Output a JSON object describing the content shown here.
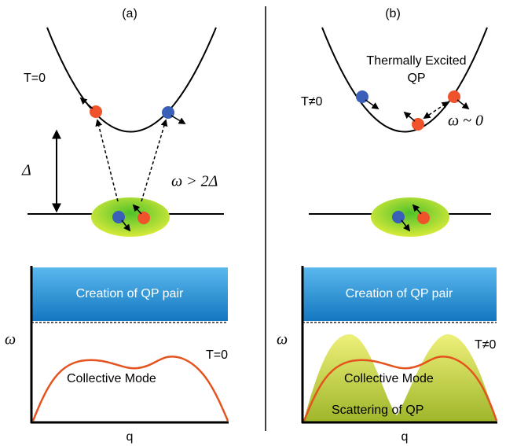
{
  "panels": [
    {
      "label": "(a)",
      "temperature": "T=0",
      "gap": "Δ",
      "frequency": "ω > 2Δ",
      "band": "Creation of QP pair",
      "axis_y": "ω",
      "axis_x": "q",
      "mode_temperature": "T=0",
      "mode": "Collective Mode"
    },
    {
      "label": "(b)",
      "temperature": "T≠0",
      "excitation": [
        "Thermally Excited",
        "QP"
      ],
      "frequency": "ω ~ 0",
      "band": "Creation of QP pair",
      "axis_y": "ω",
      "axis_x": "q",
      "mode_temperature": "T≠0",
      "mode": "Collective Mode",
      "scattering": "Scattering of QP"
    }
  ]
}
